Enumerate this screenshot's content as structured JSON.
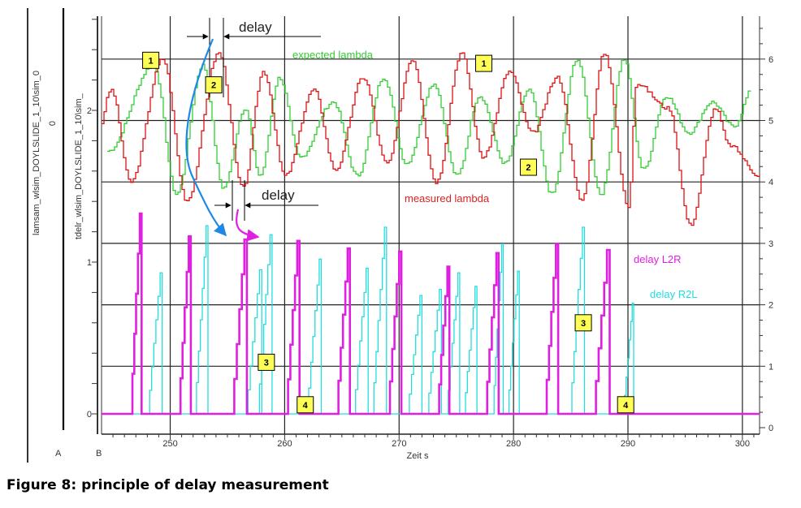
{
  "caption": "Figure 8: principle of delay measurement",
  "chart_data": {
    "type": "line",
    "xlabel": "Zeit s",
    "x_ticks": [
      250,
      260,
      270,
      280,
      290,
      300
    ],
    "xlim": [
      244,
      301.5
    ],
    "y_axis_labels": {
      "outer": "lamsam_wlsim_DOYLSLIDE_1_10\\sim_0",
      "inner": "tdelr_wlsim_DOYLSLIDE_1_10\\sim_"
    },
    "panel_letters": [
      "A",
      "B"
    ],
    "left_inner_ticks": [
      "0",
      "1",
      "2"
    ],
    "left_outer_ticks": [
      "0"
    ],
    "right_ticks": [
      "0",
      "1",
      "2",
      "3",
      "4",
      "5",
      "6"
    ],
    "series": [
      {
        "name": "expected lambda",
        "color": "#33cc33",
        "peaks": [
          [
            248.5,
            5.9
          ],
          [
            252.8,
            5.9
          ],
          [
            256.5,
            5.2
          ],
          [
            259.5,
            5.7
          ],
          [
            264.2,
            5.3
          ],
          [
            268.6,
            5.7
          ],
          [
            273,
            5.6
          ],
          [
            277,
            5.4
          ],
          [
            281.3,
            5.5
          ],
          [
            285.5,
            6.0
          ],
          [
            289.6,
            6.0
          ],
          [
            293.3,
            5.4
          ],
          [
            297.3,
            5.3
          ]
        ],
        "troughs": [
          [
            244.5,
            4.5
          ],
          [
            250.5,
            3.8
          ],
          [
            254.6,
            3.9
          ],
          [
            257.8,
            4.1
          ],
          [
            261.3,
            4.4
          ],
          [
            266.3,
            4.1
          ],
          [
            270.6,
            4.3
          ],
          [
            275,
            4.1
          ],
          [
            279.2,
            4.3
          ],
          [
            283.3,
            3.8
          ],
          [
            287.6,
            3.8
          ],
          [
            291.3,
            4.2
          ],
          [
            295.3,
            4.8
          ],
          [
            299.2,
            4.9
          ],
          [
            300.8,
            5.5
          ]
        ]
      },
      {
        "name": "measured lambda",
        "color": "#dd1111",
        "peaks": [
          [
            244.8,
            5.5
          ],
          [
            249.3,
            6.0
          ],
          [
            254.2,
            6.1
          ],
          [
            258.1,
            5.8
          ],
          [
            262.5,
            5.5
          ],
          [
            266.8,
            5.7
          ],
          [
            271.1,
            6.0
          ],
          [
            275.4,
            6.1
          ],
          [
            279.6,
            5.8
          ],
          [
            283.8,
            5.7
          ],
          [
            287.9,
            6.1
          ],
          [
            290.7,
            5.6
          ],
          [
            293.5,
            5.2
          ],
          [
            297.6,
            5.2
          ]
        ],
        "troughs": [
          [
            243.5,
            4.7
          ],
          [
            246.5,
            4.0
          ],
          [
            251.4,
            3.7
          ],
          [
            256.3,
            3.9
          ],
          [
            260,
            4.1
          ],
          [
            264.4,
            4.2
          ],
          [
            268.9,
            4.3
          ],
          [
            273.2,
            4.0
          ],
          [
            277.3,
            4.4
          ],
          [
            281.6,
            4.8
          ],
          [
            285.9,
            3.7
          ],
          [
            290,
            3.6
          ],
          [
            295.4,
            3.3
          ],
          [
            298.8,
            4.6
          ],
          [
            301.5,
            4.1
          ]
        ]
      },
      {
        "name": "delay L2R",
        "color": "#e020e0",
        "baseline": 0,
        "pulses": [
          [
            246.7,
            247.5,
            1.32
          ],
          [
            250.9,
            251.8,
            1.17
          ],
          [
            255.6,
            256.7,
            1.15
          ],
          [
            260.3,
            261.3,
            1.14
          ],
          [
            264.7,
            265.7,
            1.09
          ],
          [
            269.2,
            270.2,
            1.07
          ],
          [
            273.5,
            274.4,
            0.97
          ],
          [
            277.7,
            278.7,
            1.06
          ],
          [
            282.9,
            283.9,
            1.12
          ],
          [
            287.2,
            288.4,
            1.08
          ]
        ]
      },
      {
        "name": "delay R2L",
        "color": "#22dddd",
        "baseline": 0,
        "pulses": [
          [
            248.2,
            249.3,
            0.93
          ],
          [
            252.3,
            253.3,
            1.24
          ],
          [
            256.8,
            258.0,
            0.95
          ],
          [
            257.8,
            258.9,
            1.18
          ],
          [
            262.1,
            263.2,
            1.02
          ],
          [
            266.2,
            267.3,
            0.96
          ],
          [
            267.8,
            268.9,
            1.23
          ],
          [
            270.9,
            272.0,
            0.78
          ],
          [
            272.6,
            273.7,
            0.82
          ],
          [
            274.3,
            275.3,
            0.93
          ],
          [
            275.8,
            276.8,
            0.84
          ],
          [
            278.3,
            279.1,
            1.12
          ],
          [
            279.6,
            280.5,
            0.94
          ],
          [
            285.1,
            286.2,
            1.23
          ],
          [
            289.7,
            290.5,
            0.73
          ]
        ]
      }
    ],
    "annotations": {
      "expected_lambda": "expected lambda",
      "measured_lambda": "measured lambda",
      "delay_l2r": "delay L2R",
      "delay_r2l": "delay R2L",
      "delay_top": "delay",
      "delay_mid": "delay"
    },
    "markers": [
      {
        "label": "1",
        "x": 248.3,
        "y": 5.98
      },
      {
        "label": "2",
        "x": 253.8,
        "y": 5.58
      },
      {
        "label": "1",
        "x": 277.4,
        "y": 5.93
      },
      {
        "label": "2",
        "x": 281.3,
        "y": 4.24
      },
      {
        "label": "3",
        "x": 258.4,
        "y": 0.34
      },
      {
        "label": "3",
        "x": 286.1,
        "y": 0.6
      },
      {
        "label": "4",
        "x": 261.8,
        "y": 0.06
      },
      {
        "label": "4",
        "x": 289.8,
        "y": 0.06
      }
    ],
    "grid": true
  }
}
